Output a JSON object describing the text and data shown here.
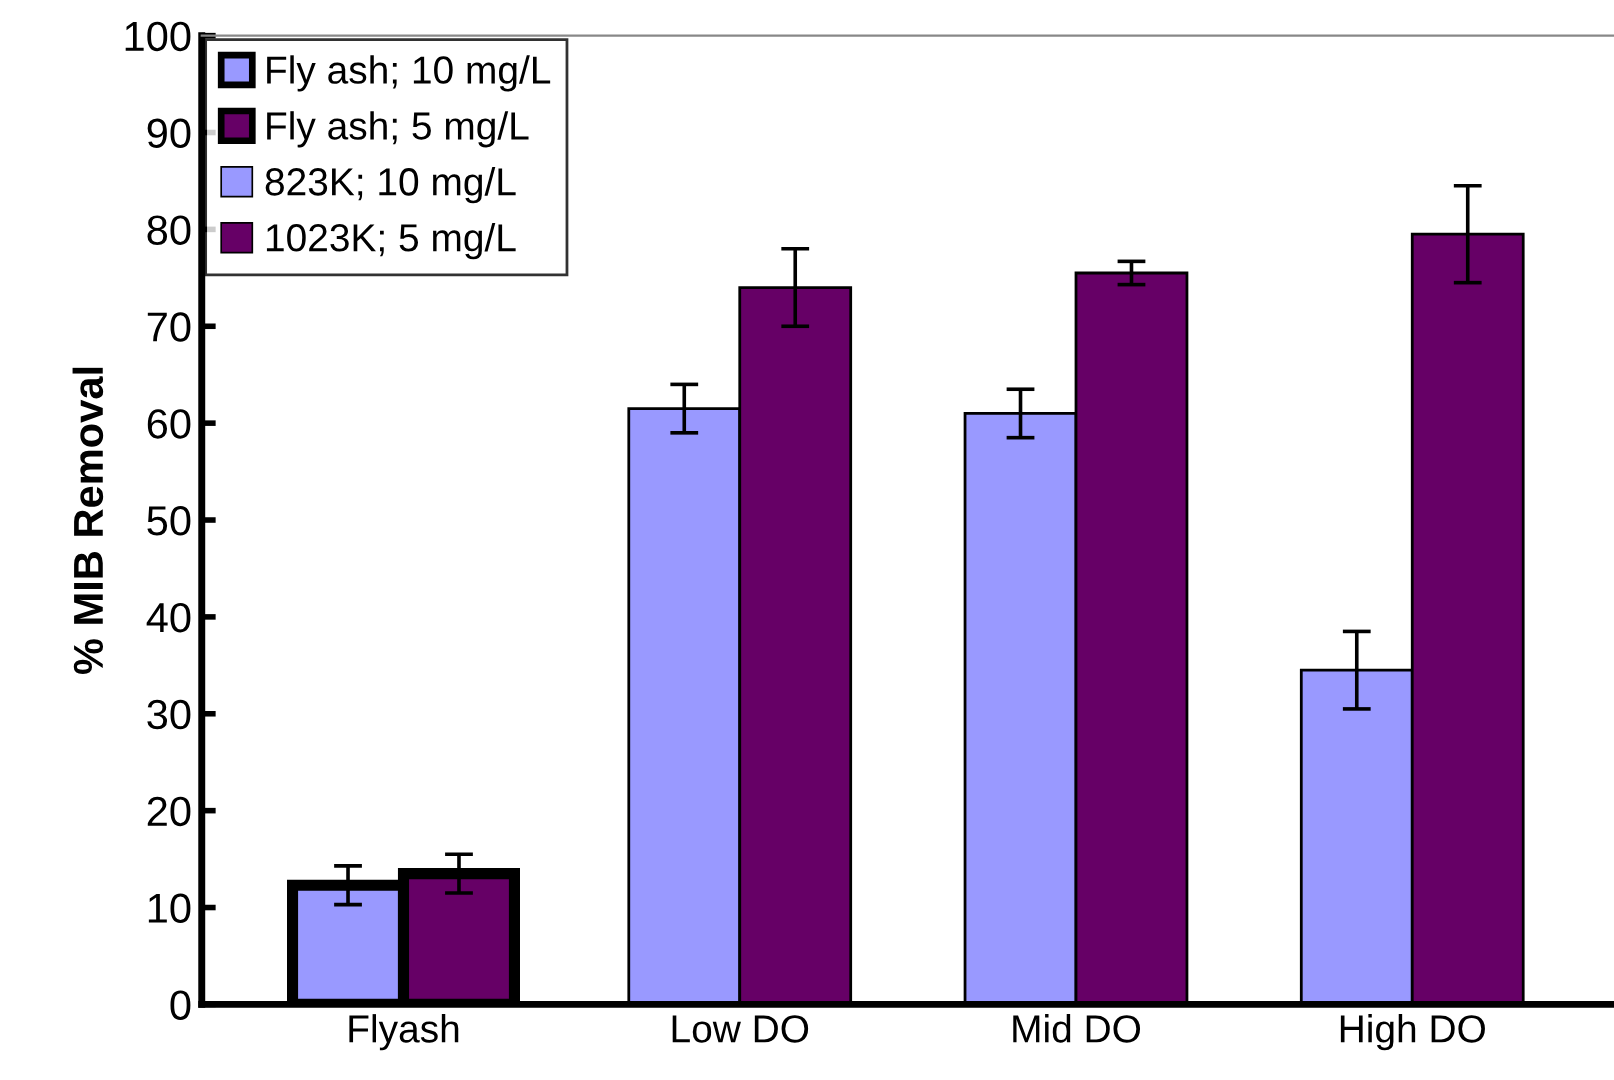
{
  "chart_data": {
    "type": "bar",
    "ylabel": "% MIB Removal",
    "categories": [
      "Flyash",
      "Low DO",
      "Mid DO",
      "High DO"
    ],
    "series": [
      {
        "name": "Fly ash; 10 mg/L",
        "color": "#9999ff",
        "values": [
          12.3,
          null,
          null,
          null
        ],
        "errors": [
          2,
          null,
          null,
          null
        ]
      },
      {
        "name": "Fly ash; 5 mg/L",
        "color": "#660066",
        "values": [
          13.5,
          null,
          null,
          null
        ],
        "errors": [
          2,
          null,
          null,
          null
        ]
      },
      {
        "name": "823K; 10 mg/L",
        "color": "#9999ff",
        "values": [
          null,
          61.5,
          61,
          34.5
        ],
        "errors": [
          null,
          2.5,
          2.5,
          4
        ]
      },
      {
        "name": "1023K; 5 mg/L",
        "color": "#660066",
        "values": [
          null,
          74,
          75.5,
          79.5
        ],
        "errors": [
          null,
          4,
          1.2,
          5
        ]
      }
    ],
    "ylim": [
      0,
      100
    ],
    "yticks": [
      0,
      10,
      20,
      30,
      40,
      50,
      60,
      70,
      80,
      90,
      100
    ],
    "grid": false,
    "legend": "top left"
  }
}
